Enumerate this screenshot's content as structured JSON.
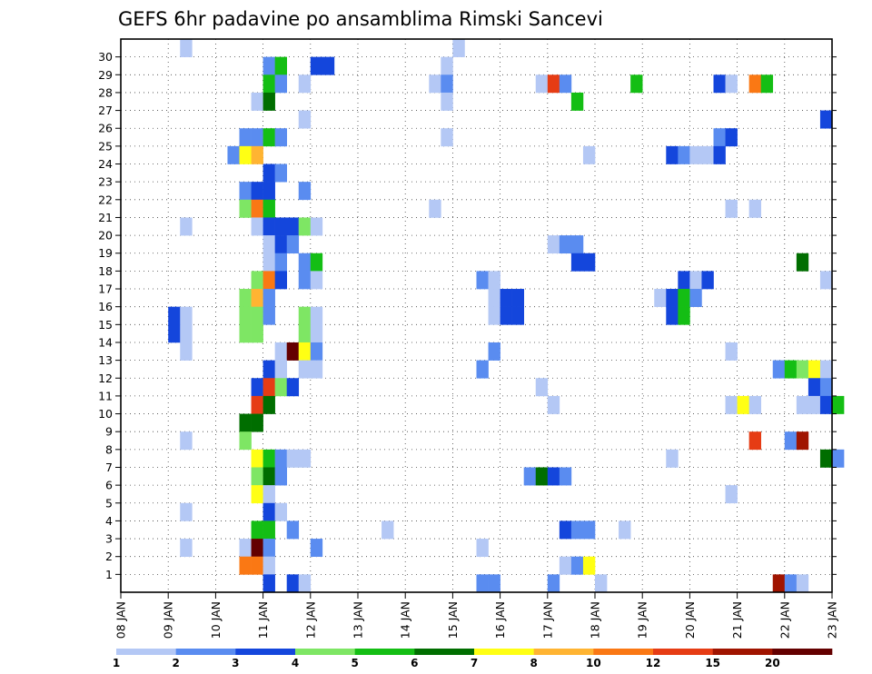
{
  "chart_data": {
    "type": "heatmap",
    "title": "GEFS 6hr padavine po ansamblima Rimski Sancevi",
    "xlabel": "",
    "ylabel": "",
    "x_ticks": [
      "08 JAN",
      "09 JAN",
      "10 JAN",
      "11 JAN",
      "12 JAN",
      "13 JAN",
      "14 JAN",
      "15 JAN",
      "16 JAN",
      "17 JAN",
      "18 JAN",
      "19 JAN",
      "20 JAN",
      "21 JAN",
      "22 JAN",
      "23 JAN"
    ],
    "y_ticks": [
      "1",
      "2",
      "3",
      "4",
      "5",
      "6",
      "7",
      "8",
      "9",
      "10",
      "11",
      "12",
      "13",
      "14",
      "15",
      "16",
      "17",
      "18",
      "19",
      "20",
      "21",
      "22",
      "23",
      "24",
      "25",
      "26",
      "27",
      "28",
      "29",
      "30"
    ],
    "time_step_hours": 6,
    "members": 31,
    "grid": true,
    "colorbar": {
      "labels": [
        "1",
        "2",
        "3",
        "4",
        "5",
        "6",
        "7",
        "8",
        "10",
        "12",
        "15",
        "20"
      ],
      "colors": [
        "#b4c8f5",
        "#5a8cf0",
        "#1446dc",
        "#7ee664",
        "#14be14",
        "#006e00",
        "#ffff14",
        "#ffb432",
        "#fa7814",
        "#e63c14",
        "#a01400",
        "#640000"
      ]
    },
    "cells": [
      [
        5,
        30,
        0
      ],
      [
        28,
        30,
        0
      ],
      [
        12,
        29,
        1
      ],
      [
        13,
        29,
        4
      ],
      [
        16,
        29,
        2
      ],
      [
        17,
        29,
        2
      ],
      [
        27,
        29,
        0
      ],
      [
        12,
        28,
        4
      ],
      [
        13,
        28,
        1
      ],
      [
        15,
        28,
        0
      ],
      [
        26,
        28,
        0
      ],
      [
        27,
        28,
        1
      ],
      [
        35,
        28,
        0
      ],
      [
        36,
        28,
        9
      ],
      [
        37,
        28,
        1
      ],
      [
        43,
        28,
        4
      ],
      [
        50,
        28,
        2
      ],
      [
        51,
        28,
        0
      ],
      [
        53,
        28,
        8
      ],
      [
        54,
        28,
        4
      ],
      [
        11,
        27,
        0
      ],
      [
        12,
        27,
        5
      ],
      [
        27,
        27,
        0
      ],
      [
        38,
        27,
        4
      ],
      [
        15,
        26,
        0
      ],
      [
        59,
        26,
        2
      ],
      [
        10,
        25,
        1
      ],
      [
        11,
        25,
        1
      ],
      [
        12,
        25,
        4
      ],
      [
        13,
        25,
        1
      ],
      [
        27,
        25,
        0
      ],
      [
        50,
        25,
        1
      ],
      [
        51,
        25,
        2
      ],
      [
        9,
        24,
        1
      ],
      [
        10,
        24,
        6
      ],
      [
        11,
        24,
        7
      ],
      [
        39,
        24,
        0
      ],
      [
        46,
        24,
        2
      ],
      [
        47,
        24,
        1
      ],
      [
        48,
        24,
        0
      ],
      [
        49,
        24,
        0
      ],
      [
        50,
        24,
        2
      ],
      [
        12,
        23,
        2
      ],
      [
        13,
        23,
        1
      ],
      [
        10,
        22,
        1
      ],
      [
        11,
        22,
        2
      ],
      [
        12,
        22,
        2
      ],
      [
        15,
        22,
        1
      ],
      [
        10,
        21,
        3
      ],
      [
        11,
        21,
        8
      ],
      [
        12,
        21,
        4
      ],
      [
        26,
        21,
        0
      ],
      [
        51,
        21,
        0
      ],
      [
        53,
        21,
        0
      ],
      [
        11,
        20,
        0
      ],
      [
        12,
        20,
        2
      ],
      [
        13,
        20,
        2
      ],
      [
        14,
        20,
        2
      ],
      [
        15,
        20,
        3
      ],
      [
        16,
        20,
        0
      ],
      [
        5,
        20,
        0
      ],
      [
        12,
        19,
        0
      ],
      [
        13,
        19,
        2
      ],
      [
        14,
        19,
        1
      ],
      [
        36,
        19,
        0
      ],
      [
        37,
        19,
        1
      ],
      [
        38,
        19,
        1
      ],
      [
        12,
        18,
        0
      ],
      [
        13,
        18,
        1
      ],
      [
        15,
        18,
        1
      ],
      [
        16,
        18,
        4
      ],
      [
        38,
        18,
        2
      ],
      [
        39,
        18,
        2
      ],
      [
        57,
        18,
        5
      ],
      [
        11,
        17,
        3
      ],
      [
        12,
        17,
        8
      ],
      [
        13,
        17,
        2
      ],
      [
        15,
        17,
        1
      ],
      [
        16,
        17,
        0
      ],
      [
        30,
        17,
        1
      ],
      [
        31,
        17,
        0
      ],
      [
        47,
        17,
        2
      ],
      [
        48,
        17,
        0
      ],
      [
        49,
        17,
        2
      ],
      [
        59,
        17,
        0
      ],
      [
        10,
        16,
        3
      ],
      [
        11,
        16,
        7
      ],
      [
        12,
        16,
        1
      ],
      [
        31,
        16,
        0
      ],
      [
        32,
        16,
        2
      ],
      [
        33,
        16,
        2
      ],
      [
        45,
        16,
        0
      ],
      [
        46,
        16,
        2
      ],
      [
        47,
        16,
        4
      ],
      [
        48,
        16,
        1
      ],
      [
        10,
        15,
        3
      ],
      [
        11,
        15,
        3
      ],
      [
        15,
        15,
        3
      ],
      [
        16,
        15,
        0
      ],
      [
        12,
        15,
        1
      ],
      [
        31,
        15,
        0
      ],
      [
        32,
        15,
        2
      ],
      [
        33,
        15,
        2
      ],
      [
        46,
        15,
        2
      ],
      [
        47,
        15,
        4
      ],
      [
        4,
        15,
        2
      ],
      [
        5,
        15,
        0
      ],
      [
        10,
        14,
        3
      ],
      [
        11,
        14,
        3
      ],
      [
        4,
        14,
        2
      ],
      [
        5,
        14,
        0
      ],
      [
        15,
        14,
        3
      ],
      [
        16,
        14,
        0
      ],
      [
        13,
        13,
        0
      ],
      [
        14,
        13,
        11
      ],
      [
        15,
        13,
        6
      ],
      [
        16,
        13,
        1
      ],
      [
        5,
        13,
        0
      ],
      [
        31,
        13,
        1
      ],
      [
        51,
        13,
        0
      ],
      [
        12,
        12,
        2
      ],
      [
        13,
        12,
        0
      ],
      [
        15,
        12,
        0
      ],
      [
        16,
        12,
        0
      ],
      [
        30,
        12,
        1
      ],
      [
        55,
        12,
        1
      ],
      [
        56,
        12,
        4
      ],
      [
        57,
        12,
        3
      ],
      [
        58,
        12,
        6
      ],
      [
        59,
        12,
        0
      ],
      [
        11,
        11,
        2
      ],
      [
        12,
        11,
        9
      ],
      [
        13,
        11,
        3
      ],
      [
        14,
        11,
        2
      ],
      [
        35,
        11,
        0
      ],
      [
        58,
        11,
        2
      ],
      [
        59,
        11,
        1
      ],
      [
        11,
        10,
        9
      ],
      [
        12,
        10,
        5
      ],
      [
        36,
        10,
        0
      ],
      [
        51,
        10,
        0
      ],
      [
        52,
        10,
        6
      ],
      [
        53,
        10,
        0
      ],
      [
        57,
        10,
        0
      ],
      [
        58,
        10,
        0
      ],
      [
        59,
        10,
        2
      ],
      [
        60,
        10,
        4
      ],
      [
        10,
        9,
        5
      ],
      [
        11,
        9,
        5
      ],
      [
        10,
        8,
        3
      ],
      [
        5,
        8,
        0
      ],
      [
        53,
        8,
        9
      ],
      [
        56,
        8,
        1
      ],
      [
        57,
        8,
        10
      ],
      [
        11,
        7,
        6
      ],
      [
        12,
        7,
        4
      ],
      [
        13,
        7,
        1
      ],
      [
        14,
        7,
        0
      ],
      [
        15,
        7,
        0
      ],
      [
        46,
        7,
        0
      ],
      [
        59,
        7,
        5
      ],
      [
        60,
        7,
        1
      ],
      [
        11,
        6,
        3
      ],
      [
        12,
        6,
        5
      ],
      [
        13,
        6,
        1
      ],
      [
        34,
        6,
        1
      ],
      [
        35,
        6,
        5
      ],
      [
        36,
        6,
        2
      ],
      [
        37,
        6,
        1
      ],
      [
        11,
        5,
        6
      ],
      [
        12,
        5,
        0
      ],
      [
        51,
        5,
        0
      ],
      [
        12,
        4,
        2
      ],
      [
        13,
        4,
        0
      ],
      [
        5,
        4,
        0
      ],
      [
        11,
        3,
        4
      ],
      [
        12,
        3,
        4
      ],
      [
        14,
        3,
        1
      ],
      [
        22,
        3,
        0
      ],
      [
        37,
        3,
        2
      ],
      [
        38,
        3,
        1
      ],
      [
        39,
        3,
        1
      ],
      [
        42,
        3,
        0
      ],
      [
        10,
        2,
        0
      ],
      [
        11,
        2,
        11
      ],
      [
        12,
        2,
        1
      ],
      [
        5,
        2,
        0
      ],
      [
        16,
        2,
        1
      ],
      [
        30,
        2,
        0
      ],
      [
        10,
        1,
        8
      ],
      [
        11,
        1,
        8
      ],
      [
        12,
        1,
        0
      ],
      [
        37,
        1,
        0
      ],
      [
        38,
        1,
        1
      ],
      [
        39,
        1,
        6
      ],
      [
        12,
        0,
        2
      ],
      [
        14,
        0,
        2
      ],
      [
        15,
        0,
        0
      ],
      [
        30,
        0,
        1
      ],
      [
        31,
        0,
        1
      ],
      [
        36,
        0,
        1
      ],
      [
        40,
        0,
        0
      ],
      [
        55,
        0,
        10
      ],
      [
        56,
        0,
        1
      ],
      [
        57,
        0,
        0
      ]
    ]
  }
}
